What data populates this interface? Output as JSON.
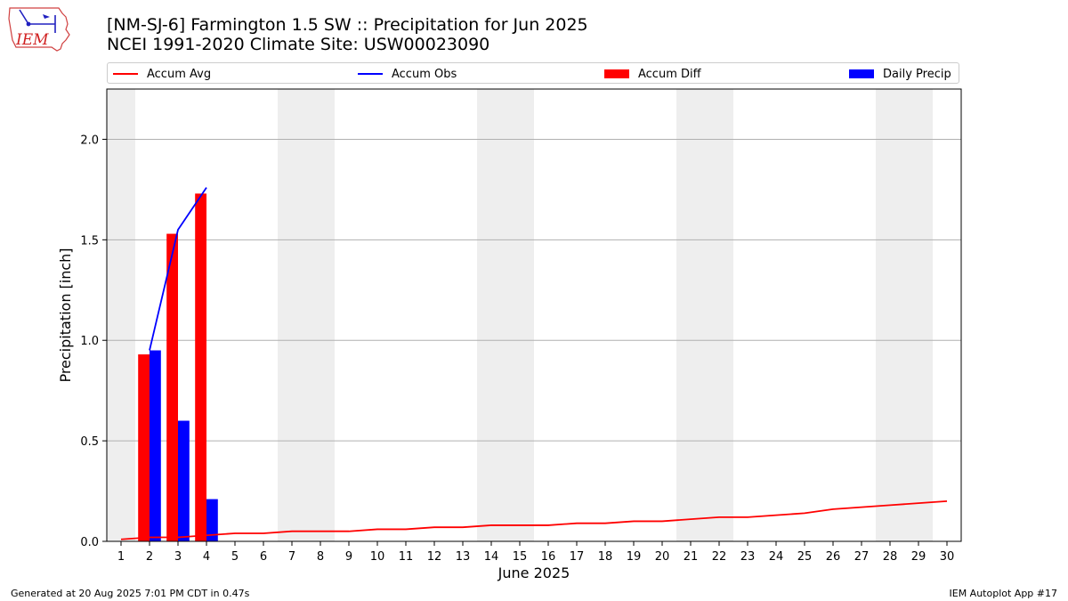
{
  "header": {
    "title_line1": "[NM-SJ-6] Farmington 1.5 SW :: Precipitation for Jun 2025",
    "title_line2": "NCEI 1991-2020 Climate Site: USW00023090",
    "logo_text": "IEM"
  },
  "legend": [
    {
      "label": "Accum Avg",
      "color": "#ff0000",
      "kind": "line"
    },
    {
      "label": "Accum Obs",
      "color": "#0000ff",
      "kind": "line"
    },
    {
      "label": "Accum Diff",
      "color": "#ff0000",
      "kind": "bar"
    },
    {
      "label": "Daily Precip",
      "color": "#0000ff",
      "kind": "bar"
    }
  ],
  "footer": {
    "left": "Generated at 20 Aug 2025 7:01 PM CDT in 0.47s",
    "right": "IEM Autoplot App #17"
  },
  "chart_data": {
    "type": "bar",
    "xlabel": "June 2025",
    "ylabel": "Precipitation [inch]",
    "x": [
      1,
      2,
      3,
      4,
      5,
      6,
      7,
      8,
      9,
      10,
      11,
      12,
      13,
      14,
      15,
      16,
      17,
      18,
      19,
      20,
      21,
      22,
      23,
      24,
      25,
      26,
      27,
      28,
      29,
      30
    ],
    "xlim": [
      0.5,
      30.5
    ],
    "ylim": [
      0,
      2.25
    ],
    "yticks": [
      0.0,
      0.5,
      1.0,
      1.5,
      2.0
    ],
    "ytick_labels": [
      "0.0",
      "0.5",
      "1.0",
      "1.5",
      "2.0"
    ],
    "grid": "horizontal",
    "weekend_shading": [
      [
        0.5,
        1.5
      ],
      [
        6.5,
        8.5
      ],
      [
        13.5,
        15.5
      ],
      [
        20.5,
        22.5
      ],
      [
        27.5,
        29.5
      ]
    ],
    "series": [
      {
        "name": "Accum Avg",
        "type": "line",
        "color": "#ff0000",
        "x": [
          1,
          2,
          3,
          4,
          5,
          6,
          7,
          8,
          9,
          10,
          11,
          12,
          13,
          14,
          15,
          16,
          17,
          18,
          19,
          20,
          21,
          22,
          23,
          24,
          25,
          26,
          27,
          28,
          29,
          30
        ],
        "values": [
          0.01,
          0.02,
          0.02,
          0.03,
          0.04,
          0.04,
          0.05,
          0.05,
          0.05,
          0.06,
          0.06,
          0.07,
          0.07,
          0.08,
          0.08,
          0.08,
          0.09,
          0.09,
          0.1,
          0.1,
          0.11,
          0.12,
          0.12,
          0.13,
          0.14,
          0.16,
          0.17,
          0.18,
          0.19,
          0.2
        ]
      },
      {
        "name": "Accum Obs",
        "type": "line",
        "color": "#0000ff",
        "x": [
          2,
          3,
          4
        ],
        "values": [
          0.95,
          1.55,
          1.76
        ]
      },
      {
        "name": "Accum Diff",
        "type": "bar",
        "color": "#ff0000",
        "x": [
          2,
          3,
          4
        ],
        "values": [
          0.93,
          1.53,
          1.73
        ]
      },
      {
        "name": "Daily Precip",
        "type": "bar",
        "color": "#0000ff",
        "x": [
          2,
          3,
          4
        ],
        "values": [
          0.95,
          0.6,
          0.21
        ]
      }
    ]
  }
}
